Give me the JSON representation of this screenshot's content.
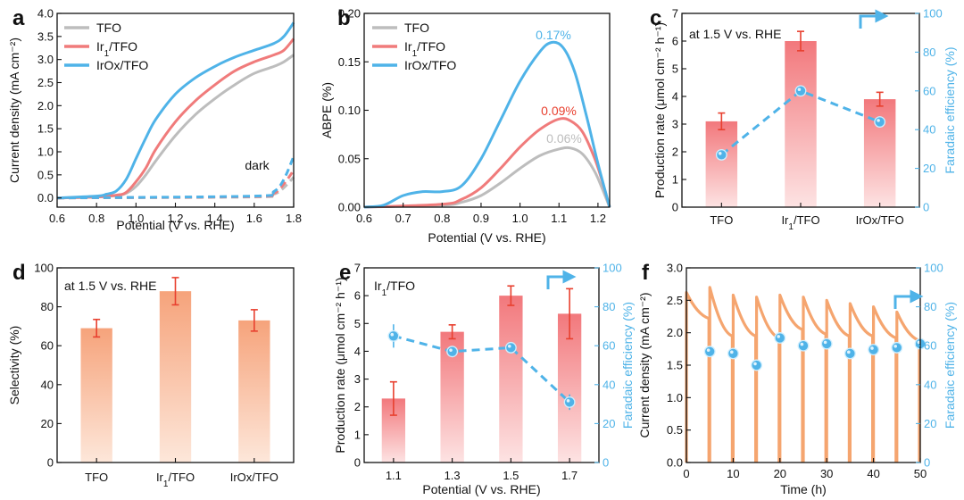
{
  "colors": {
    "tfo": "#bdbdbd",
    "ir1": "#f07b7b",
    "irox": "#4fb3e8",
    "err": "#e8402f",
    "barA_top": "#f2787c",
    "barA_bot": "#fde3e3",
    "barD_top": "#f6a37b",
    "barD_bot": "#fde7da",
    "time": "#f5a56f"
  },
  "chart_data": [
    {
      "panel": "a",
      "type": "line",
      "xlabel": "Potential (V vs. RHE)",
      "ylabel": "Current density (mA cm⁻²)",
      "xlim": [
        0.6,
        1.8
      ],
      "ylim": [
        -0.2,
        4.0
      ],
      "xticks": [
        "0.6",
        "0.8",
        "1.0",
        "1.2",
        "1.4",
        "1.6",
        "1.8"
      ],
      "yticks": [
        "0.0",
        "0.5",
        "1.0",
        "1.5",
        "2.0",
        "2.5",
        "3.0",
        "3.5",
        "4.0"
      ],
      "legend": [
        "TFO",
        "Ir1/TFO",
        "IrOx/TFO"
      ],
      "annotation": "dark",
      "series": [
        {
          "name": "TFO",
          "x": [
            0.6,
            0.8,
            0.9,
            0.95,
            1.0,
            1.05,
            1.1,
            1.2,
            1.3,
            1.4,
            1.5,
            1.6,
            1.7,
            1.75,
            1.8
          ],
          "y": [
            0.0,
            0.02,
            0.05,
            0.1,
            0.25,
            0.5,
            0.8,
            1.35,
            1.8,
            2.15,
            2.45,
            2.7,
            2.85,
            2.95,
            3.1
          ]
        },
        {
          "name": "Ir1/TFO",
          "x": [
            0.6,
            0.8,
            0.9,
            0.95,
            1.0,
            1.05,
            1.1,
            1.2,
            1.3,
            1.4,
            1.5,
            1.6,
            1.7,
            1.75,
            1.8
          ],
          "y": [
            0.0,
            0.02,
            0.06,
            0.12,
            0.35,
            0.65,
            1.05,
            1.65,
            2.1,
            2.45,
            2.75,
            2.95,
            3.1,
            3.2,
            3.45
          ]
        },
        {
          "name": "IrOx/TFO",
          "x": [
            0.6,
            0.8,
            0.85,
            0.9,
            0.95,
            1.0,
            1.05,
            1.1,
            1.2,
            1.3,
            1.4,
            1.5,
            1.6,
            1.7,
            1.75,
            1.8
          ],
          "y": [
            0.0,
            0.04,
            0.08,
            0.15,
            0.4,
            0.85,
            1.3,
            1.7,
            2.25,
            2.6,
            2.85,
            3.05,
            3.2,
            3.35,
            3.5,
            3.8
          ]
        },
        {
          "name": "TFO dark",
          "x": [
            0.6,
            1.6,
            1.7,
            1.75,
            1.8
          ],
          "y": [
            0.0,
            0.02,
            0.08,
            0.22,
            0.45
          ]
        },
        {
          "name": "Ir1/TFO dark",
          "x": [
            0.6,
            1.6,
            1.7,
            1.75,
            1.8
          ],
          "y": [
            0.0,
            0.03,
            0.1,
            0.3,
            0.6
          ]
        },
        {
          "name": "IrOx/TFO dark",
          "x": [
            0.6,
            1.6,
            1.7,
            1.75,
            1.8
          ],
          "y": [
            0.0,
            0.04,
            0.14,
            0.4,
            0.9
          ]
        }
      ]
    },
    {
      "panel": "b",
      "type": "line",
      "xlabel": "Potential (V vs. RHE)",
      "ylabel": "ABPE (%)",
      "xlim": [
        0.6,
        1.23
      ],
      "ylim": [
        0.0,
        0.2
      ],
      "xticks": [
        "0.6",
        "0.7",
        "0.8",
        "0.9",
        "1.0",
        "1.1",
        "1.2"
      ],
      "yticks": [
        "0.00",
        "0.05",
        "0.10",
        "0.15",
        "0.20"
      ],
      "legend": [
        "TFO",
        "Ir1/TFO",
        "IrOx/TFO"
      ],
      "annotations": [
        "0.17%",
        "0.09%",
        "0.06%"
      ],
      "series": [
        {
          "name": "TFO",
          "x": [
            0.6,
            0.8,
            0.85,
            0.9,
            0.95,
            1.0,
            1.05,
            1.1,
            1.13,
            1.16,
            1.19,
            1.21,
            1.23
          ],
          "y": [
            0.0,
            0.002,
            0.005,
            0.012,
            0.025,
            0.04,
            0.053,
            0.06,
            0.061,
            0.055,
            0.038,
            0.02,
            0.0
          ]
        },
        {
          "name": "Ir1/TFO",
          "x": [
            0.6,
            0.8,
            0.85,
            0.9,
            0.95,
            1.0,
            1.05,
            1.1,
            1.13,
            1.16,
            1.19,
            1.21,
            1.23
          ],
          "y": [
            0.0,
            0.003,
            0.008,
            0.02,
            0.04,
            0.062,
            0.08,
            0.091,
            0.089,
            0.078,
            0.052,
            0.028,
            0.0
          ]
        },
        {
          "name": "IrOx/TFO",
          "x": [
            0.6,
            0.65,
            0.7,
            0.75,
            0.8,
            0.85,
            0.9,
            0.95,
            1.0,
            1.05,
            1.08,
            1.11,
            1.14,
            1.17,
            1.2,
            1.23
          ],
          "y": [
            0.0,
            0.002,
            0.012,
            0.016,
            0.016,
            0.022,
            0.05,
            0.09,
            0.13,
            0.16,
            0.17,
            0.165,
            0.14,
            0.095,
            0.045,
            0.0
          ]
        }
      ]
    },
    {
      "panel": "c",
      "type": "bar",
      "annotation": "at 1.5 V vs. RHE",
      "categories": [
        "TFO",
        "Ir1/TFO",
        "IrOx/TFO"
      ],
      "ylabel": "Production rate (μmol cm⁻² h⁻¹)",
      "ylim": [
        0,
        7
      ],
      "yticks": [
        "0",
        "1",
        "2",
        "3",
        "4",
        "5",
        "6",
        "7"
      ],
      "values": [
        3.1,
        6.0,
        3.9
      ],
      "errors": [
        0.3,
        0.35,
        0.25
      ],
      "y2label": "Faradaic efficiency (%)",
      "y2lim": [
        0,
        100
      ],
      "y2ticks": [
        "0",
        "20",
        "40",
        "60",
        "80",
        "100"
      ],
      "fe": [
        27,
        60,
        44
      ],
      "fe_err": [
        1.5,
        2.5,
        1.5
      ]
    },
    {
      "panel": "d",
      "type": "bar",
      "annotation": "at 1.5 V vs. RHE",
      "categories": [
        "TFO",
        "Ir1/TFO",
        "IrOx/TFO"
      ],
      "ylabel": "Selectivity (%)",
      "ylim": [
        0,
        100
      ],
      "yticks": [
        "0",
        "20",
        "40",
        "60",
        "80",
        "100"
      ],
      "values": [
        69,
        88,
        73
      ],
      "errors": [
        4.5,
        7,
        5.5
      ]
    },
    {
      "panel": "e",
      "type": "bar",
      "annotation": "Ir1/TFO",
      "categories": [
        "1.1",
        "1.3",
        "1.5",
        "1.7"
      ],
      "xlabel": "Potential (V vs. RHE)",
      "ylabel": "Production rate (μmol cm⁻² h⁻¹)",
      "ylim": [
        0,
        7
      ],
      "yticks": [
        "0",
        "1",
        "2",
        "3",
        "4",
        "5",
        "6",
        "7"
      ],
      "values": [
        2.3,
        4.7,
        6.0,
        5.35
      ],
      "errors": [
        0.6,
        0.25,
        0.35,
        0.9
      ],
      "y2label": "Faradaic efficiency (%)",
      "y2lim": [
        0,
        100
      ],
      "y2ticks": [
        "0",
        "20",
        "40",
        "60",
        "80",
        "100"
      ],
      "fe": [
        65,
        57,
        59,
        31
      ],
      "fe_err": [
        6,
        1.5,
        3,
        4
      ]
    },
    {
      "panel": "f",
      "type": "line",
      "xlabel": "Time (h)",
      "ylabel": "Current density (mA cm⁻²)",
      "xlim": [
        0,
        50
      ],
      "ylim": [
        0,
        3.0
      ],
      "xticks": [
        "0",
        "10",
        "20",
        "30",
        "40",
        "50"
      ],
      "yticks": [
        "0.0",
        "0.5",
        "1.0",
        "1.5",
        "2.0",
        "2.5",
        "3.0"
      ],
      "y2label": "Faradaic efficiency (%)",
      "y2lim": [
        0,
        100
      ],
      "y2ticks": [
        "0",
        "20",
        "40",
        "60",
        "80",
        "100"
      ],
      "segments": [
        [
          0,
          5,
          2.62,
          2.22
        ],
        [
          5,
          10,
          2.7,
          1.95
        ],
        [
          10,
          15,
          2.58,
          1.95
        ],
        [
          15,
          20,
          2.55,
          1.92
        ],
        [
          20,
          25,
          2.58,
          2.05
        ],
        [
          25,
          30,
          2.55,
          1.98
        ],
        [
          30,
          35,
          2.5,
          1.95
        ],
        [
          35,
          40,
          2.45,
          1.95
        ],
        [
          40,
          45,
          2.4,
          1.92
        ],
        [
          45,
          50,
          2.32,
          1.88
        ]
      ],
      "fe_x": [
        5,
        10,
        15,
        20,
        25,
        30,
        35,
        40,
        45,
        50
      ],
      "fe": [
        57,
        56,
        50,
        64,
        60,
        61,
        56,
        58,
        59,
        61
      ]
    }
  ]
}
